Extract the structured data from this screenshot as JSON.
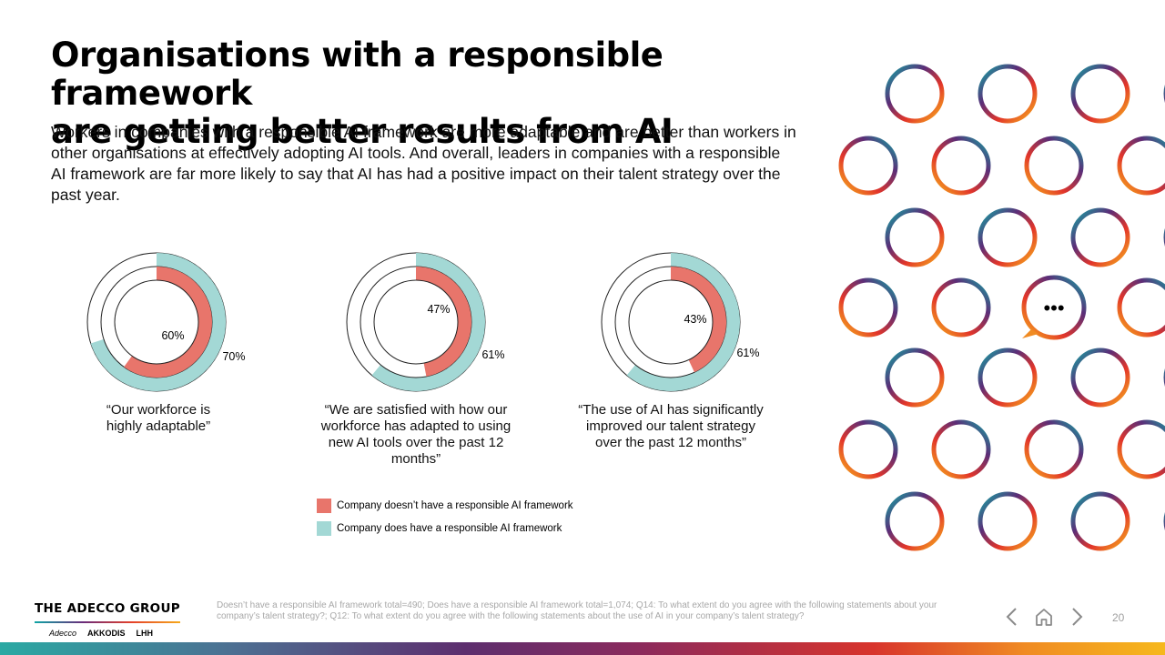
{
  "title": {
    "line1": "Organisations with a responsible framework",
    "line2": "are getting better results from AI"
  },
  "subtitle": "Workers in companies with a responsible AI framework are more adaptable and are better than workers in other organisations at effectively adopting AI tools. And overall, leaders in companies with a responsible AI framework are far more likely to say that AI has had a positive impact on their talent strategy over the past year.",
  "colors": {
    "without_framework": "#e8756b",
    "with_framework": "#a3d8d5"
  },
  "chart_data": {
    "type": "donut",
    "series_names": [
      "Company doesn’t have a responsible AI framework",
      "Company does have a responsible AI framework"
    ],
    "charts": [
      {
        "caption": "“Our workforce is highly adaptable”",
        "without_framework": 60,
        "with_framework": 70,
        "without_label": "60%",
        "with_label": "70%"
      },
      {
        "caption": "“We are satisfied with how our workforce has adapted to using new AI tools over the past 12 months”",
        "without_framework": 47,
        "with_framework": 61,
        "without_label": "47%",
        "with_label": "61%"
      },
      {
        "caption": "“The use of AI has significantly improved our talent strategy over the past 12 months”",
        "without_framework": 43,
        "with_framework": 61,
        "without_label": "43%",
        "with_label": "61%"
      }
    ]
  },
  "legend": [
    {
      "label": "Company doesn’t have a responsible AI framework",
      "color": "#e8756b"
    },
    {
      "label": "Company does have a responsible AI framework",
      "color": "#a3d8d5"
    }
  ],
  "footer": {
    "brand": "THE ADECCO GROUP",
    "subbrands": [
      "Adecco",
      "AKKODIS",
      "LHH"
    ],
    "footnote": "Doesn’t have a responsible AI framework total=490; Does have a responsible AI framework total=1,074; Q14: To what extent do you agree with the following statements about your company’s talent strategy?; Q12: To what extent do you agree with the following statements about the use of AI in your company’s talent strategy?",
    "page_number": "20"
  },
  "decor": {
    "chat_bubble_text": "•••"
  },
  "icons": [
    "chevron-left-icon",
    "home-icon",
    "chevron-right-icon",
    "chat-bubble-icon"
  ]
}
